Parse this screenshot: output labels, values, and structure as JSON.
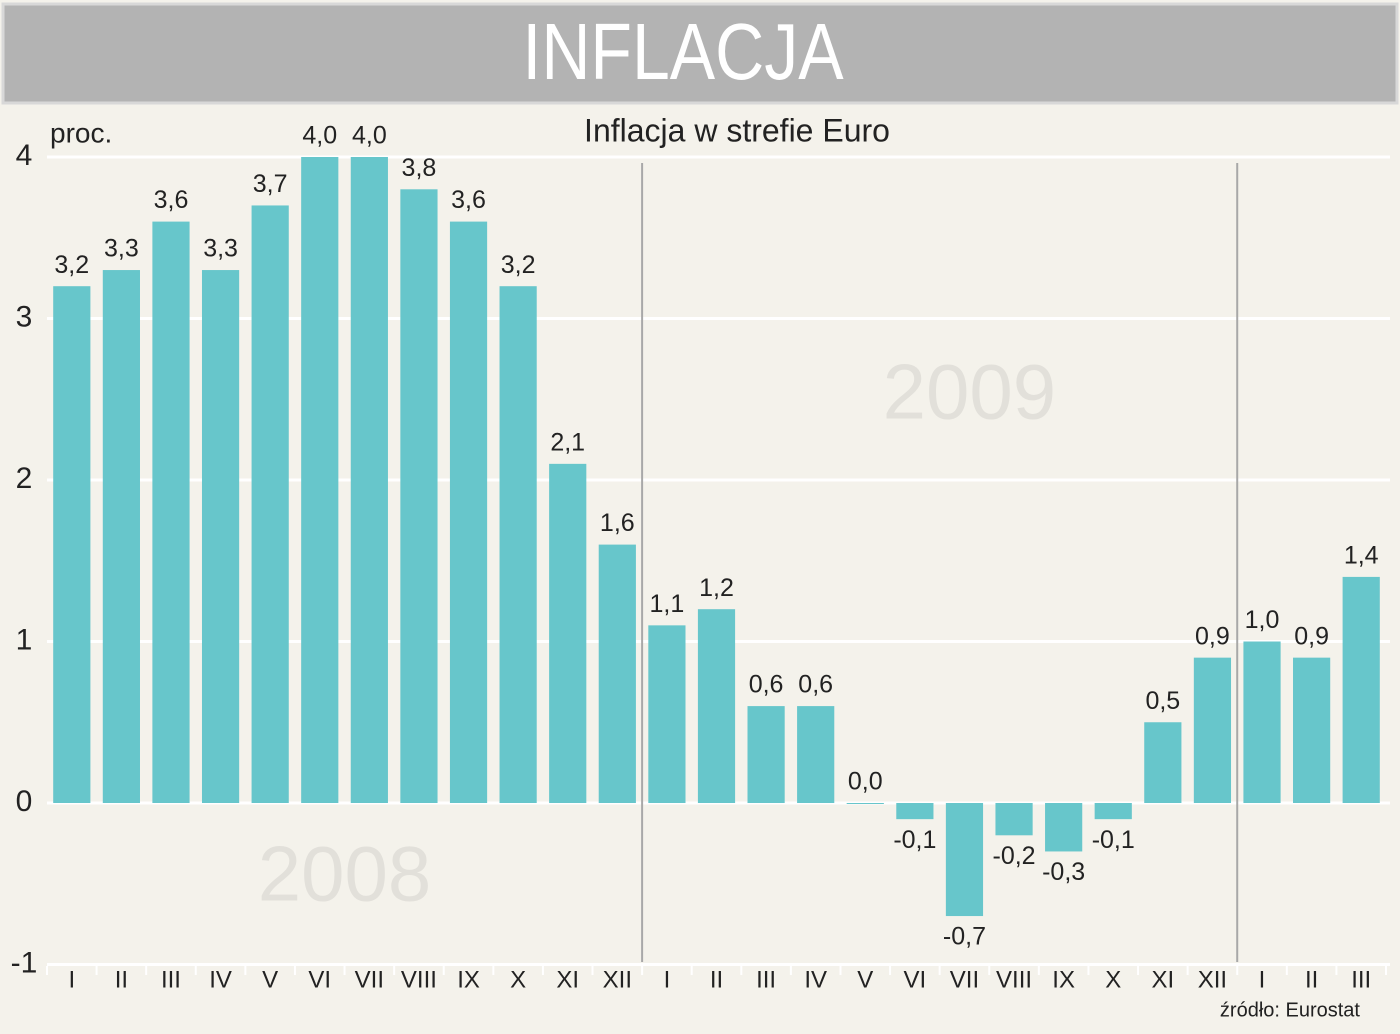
{
  "chart_data": {
    "type": "bar",
    "title": "INFLACJA",
    "subtitle": "Inflacja w strefie Euro",
    "y_label": "proc.",
    "source": "źródło: Eurostat",
    "annotations": [
      "2008",
      "2009"
    ],
    "categories": [
      "I",
      "II",
      "III",
      "IV",
      "V",
      "VI",
      "VII",
      "VIII",
      "IX",
      "X",
      "XI",
      "XII",
      "I",
      "II",
      "III",
      "IV",
      "V",
      "VI",
      "VII",
      "VIII",
      "IX",
      "X",
      "XI",
      "XII",
      "I",
      "II",
      "III"
    ],
    "values": [
      3.2,
      3.3,
      3.6,
      3.3,
      3.7,
      4.0,
      4.0,
      3.8,
      3.6,
      3.2,
      2.1,
      1.6,
      1.1,
      1.2,
      0.6,
      0.6,
      0.0,
      -0.1,
      -0.7,
      -0.2,
      -0.3,
      -0.1,
      0.5,
      0.9,
      1.0,
      0.9,
      1.4
    ],
    "value_labels": [
      "3,2",
      "3,3",
      "3,6",
      "3,3",
      "3,7",
      "4,0",
      "4,0",
      "3,8",
      "3,6",
      "3,2",
      "2,1",
      "1,6",
      "1,1",
      "1,2",
      "0,6",
      "0,6",
      "0,0",
      "-0,1",
      "-0,7",
      "-0,2",
      "-0,3",
      "-0,1",
      "0,5",
      "0,9",
      "1,0",
      "0,9",
      "1,4"
    ],
    "color": "#67c6cb",
    "ylim": [
      -1,
      4
    ],
    "yticks": [
      -1,
      0,
      1,
      2,
      3,
      4
    ],
    "grid": true
  }
}
